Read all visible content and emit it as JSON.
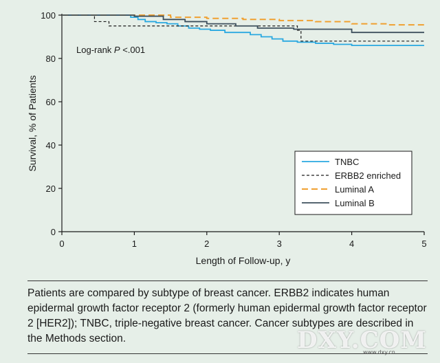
{
  "chart_data": {
    "type": "line",
    "xlabel": "Length of Follow-up, y",
    "ylabel": "Survival, % of Patients",
    "xlim": [
      0,
      5
    ],
    "ylim": [
      0,
      100
    ],
    "x_ticks": [
      "0",
      "1",
      "2",
      "3",
      "4",
      "5"
    ],
    "y_ticks": [
      "0",
      "20",
      "40",
      "60",
      "80",
      "100"
    ],
    "annotation_prefix": "Log-rank ",
    "annotation_p": "P",
    "annotation_suffix": " <.001",
    "legend_position": "bottom-right",
    "grid": false,
    "series": [
      {
        "name": "TNBC",
        "color": "#29a8e0",
        "dash": "solid",
        "x": [
          0,
          0.85,
          0.95,
          1.05,
          1.15,
          1.3,
          1.45,
          1.6,
          1.75,
          1.9,
          2.05,
          2.25,
          2.45,
          2.6,
          2.75,
          2.9,
          3.05,
          3.25,
          3.5,
          3.75,
          4.0,
          5.0
        ],
        "y": [
          100,
          100,
          99,
          98,
          97,
          96.5,
          96,
          95,
          94,
          93.5,
          93,
          92,
          92,
          91,
          90,
          89,
          88,
          87.5,
          87,
          86.5,
          86,
          86
        ]
      },
      {
        "name": "ERBB2 enriched",
        "color": "#1a1a1a",
        "dash": "dashed",
        "x": [
          0,
          0.4,
          0.45,
          0.65,
          2.6,
          3.25,
          3.3,
          5.0
        ],
        "y": [
          100,
          100,
          97,
          95,
          95,
          93,
          88,
          88
        ]
      },
      {
        "name": "Luminal A",
        "color": "#f0a030",
        "dash": "dashed",
        "x": [
          0,
          1.2,
          1.5,
          2.0,
          2.5,
          3.0,
          3.5,
          4.0,
          4.5,
          5.0
        ],
        "y": [
          100,
          100,
          99,
          98.5,
          98,
          97.5,
          97,
          96,
          95.5,
          95
        ]
      },
      {
        "name": "Luminal B",
        "color": "#3d4f5c",
        "dash": "solid",
        "x": [
          0,
          1.0,
          1.4,
          1.7,
          2.0,
          2.4,
          2.7,
          3.2,
          4.0,
          5.0
        ],
        "y": [
          100,
          99.5,
          98,
          97,
          96,
          95,
          94,
          93.5,
          92,
          92
        ]
      }
    ]
  },
  "caption": "Patients are compared by subtype of breast cancer. ERBB2 indicates human epidermal growth factor receptor 2 (formerly human epidermal growth factor receptor 2 [HER2]); TNBC, triple-negative breast cancer. Cancer subtypes are described in the Methods section.",
  "watermark": "DXY.COM",
  "watermark_sub": "www.dxy.cn"
}
